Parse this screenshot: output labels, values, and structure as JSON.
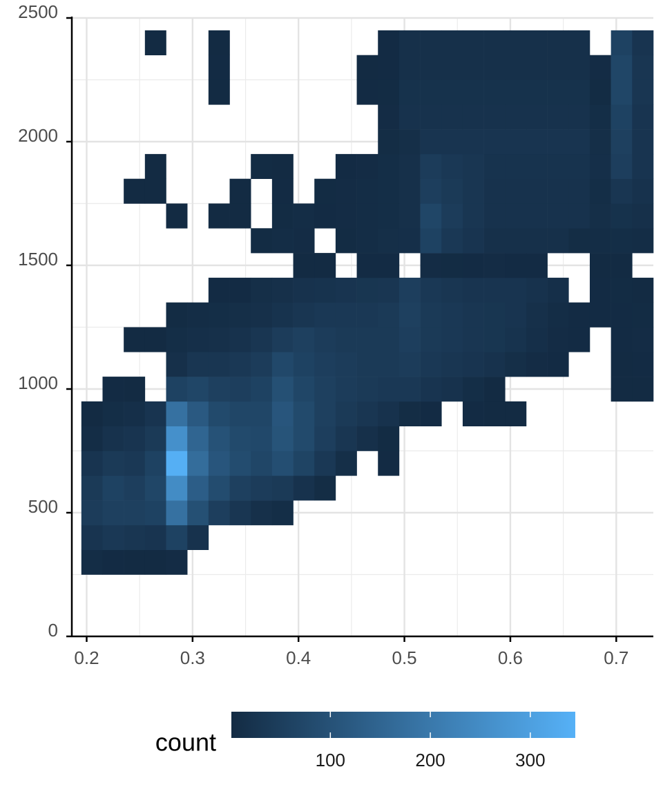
{
  "chart_data": {
    "type": "heatmap",
    "xlim": [
      0.186,
      0.735
    ],
    "ylim": [
      0,
      2500
    ],
    "xticks": [
      0.2,
      0.3,
      0.4,
      0.5,
      0.6,
      0.7
    ],
    "yticks": [
      0,
      500,
      1000,
      1500,
      2000,
      2500
    ],
    "grid": true,
    "minor_grid": true,
    "x_bins": [
      0.195,
      0.215,
      0.235,
      0.255,
      0.275,
      0.295,
      0.315,
      0.335,
      0.355,
      0.375,
      0.395,
      0.415,
      0.435,
      0.455,
      0.475,
      0.495,
      0.515,
      0.535,
      0.555,
      0.575,
      0.595,
      0.615,
      0.635,
      0.655,
      0.675,
      0.695,
      0.715,
      0.735
    ],
    "y_bins": [
      250,
      350,
      450,
      550,
      650,
      750,
      850,
      950,
      1050,
      1150,
      1250,
      1350,
      1450,
      1550,
      1650,
      1750,
      1850,
      1950,
      2050,
      2150,
      2250,
      2350,
      2450
    ],
    "counts": [
      [
        6,
        2,
        1,
        1,
        4,
        null,
        null,
        null,
        null,
        null,
        null,
        null,
        null,
        null,
        null,
        null,
        null,
        null,
        null,
        null,
        null,
        null,
        null,
        null,
        null,
        null,
        null
      ],
      [
        25,
        35,
        30,
        25,
        60,
        20,
        null,
        null,
        null,
        null,
        null,
        null,
        null,
        null,
        null,
        null,
        null,
        null,
        null,
        null,
        null,
        null,
        null,
        null,
        null,
        null,
        null
      ],
      [
        45,
        55,
        55,
        60,
        180,
        95,
        50,
        30,
        15,
        8,
        null,
        null,
        null,
        null,
        null,
        null,
        null,
        null,
        null,
        null,
        null,
        null,
        null,
        null,
        null,
        null,
        null
      ],
      [
        40,
        60,
        50,
        70,
        250,
        130,
        85,
        55,
        45,
        40,
        20,
        5,
        null,
        null,
        null,
        null,
        null,
        null,
        null,
        null,
        null,
        null,
        null,
        null,
        null,
        null,
        null
      ],
      [
        25,
        40,
        35,
        60,
        340,
        170,
        110,
        85,
        70,
        90,
        65,
        35,
        10,
        null,
        2,
        null,
        null,
        null,
        null,
        null,
        null,
        null,
        null,
        null,
        null,
        null,
        null
      ],
      [
        6,
        20,
        25,
        40,
        260,
        150,
        100,
        80,
        75,
        105,
        80,
        50,
        30,
        15,
        3,
        null,
        null,
        null,
        null,
        null,
        null,
        null,
        null,
        null,
        null,
        null,
        null
      ],
      [
        1,
        8,
        12,
        25,
        180,
        120,
        80,
        70,
        70,
        110,
        80,
        55,
        40,
        30,
        20,
        5,
        2,
        null,
        2,
        1,
        1,
        null,
        null,
        null,
        null,
        null,
        null
      ],
      [
        null,
        2,
        1,
        null,
        60,
        70,
        55,
        50,
        60,
        95,
        70,
        55,
        45,
        40,
        35,
        35,
        25,
        20,
        8,
        1,
        null,
        null,
        null,
        null,
        null,
        1,
        1
      ],
      [
        null,
        null,
        null,
        null,
        15,
        30,
        30,
        35,
        45,
        75,
        60,
        50,
        45,
        40,
        40,
        45,
        35,
        30,
        25,
        20,
        10,
        4,
        2,
        null,
        null,
        1,
        2
      ],
      [
        null,
        null,
        1,
        1,
        8,
        12,
        15,
        20,
        30,
        45,
        55,
        45,
        40,
        40,
        40,
        50,
        40,
        35,
        30,
        28,
        22,
        12,
        4,
        2,
        null,
        2,
        4
      ],
      [
        null,
        null,
        null,
        null,
        3,
        6,
        8,
        10,
        15,
        22,
        30,
        35,
        35,
        35,
        40,
        55,
        40,
        35,
        30,
        28,
        25,
        15,
        6,
        2,
        2,
        2,
        3
      ],
      [
        null,
        null,
        null,
        null,
        null,
        null,
        2,
        2,
        10,
        14,
        20,
        22,
        25,
        28,
        30,
        50,
        35,
        30,
        25,
        25,
        25,
        20,
        12,
        null,
        2,
        3,
        1
      ],
      [
        null,
        null,
        null,
        null,
        null,
        null,
        null,
        null,
        null,
        null,
        1,
        1,
        null,
        2,
        2,
        null,
        4,
        3,
        2,
        4,
        2,
        2,
        null,
        null,
        1,
        1,
        null
      ],
      [
        null,
        null,
        null,
        null,
        null,
        null,
        null,
        null,
        3,
        6,
        4,
        null,
        3,
        6,
        10,
        12,
        60,
        35,
        25,
        15,
        15,
        15,
        15,
        5,
        6,
        8,
        6
      ],
      [
        null,
        null,
        null,
        null,
        1,
        null,
        1,
        1,
        null,
        3,
        6,
        2,
        4,
        6,
        8,
        15,
        70,
        45,
        30,
        20,
        20,
        20,
        20,
        20,
        10,
        18,
        14
      ],
      [
        null,
        null,
        1,
        1,
        null,
        null,
        null,
        1,
        null,
        2,
        null,
        3,
        4,
        6,
        8,
        15,
        50,
        40,
        30,
        20,
        20,
        20,
        20,
        20,
        8,
        30,
        20
      ],
      [
        null,
        null,
        null,
        1,
        null,
        null,
        null,
        null,
        3,
        1,
        null,
        null,
        2,
        4,
        8,
        15,
        45,
        35,
        30,
        22,
        22,
        22,
        22,
        22,
        12,
        50,
        25
      ],
      [
        null,
        null,
        null,
        null,
        null,
        null,
        null,
        null,
        null,
        null,
        null,
        null,
        null,
        null,
        5,
        10,
        25,
        25,
        25,
        25,
        25,
        25,
        25,
        25,
        10,
        55,
        25
      ],
      [
        null,
        null,
        null,
        null,
        null,
        null,
        null,
        null,
        null,
        null,
        null,
        null,
        null,
        null,
        4,
        20,
        20,
        20,
        20,
        20,
        20,
        20,
        20,
        20,
        8,
        60,
        25
      ],
      [
        null,
        null,
        null,
        null,
        null,
        null,
        1,
        null,
        null,
        null,
        null,
        null,
        null,
        2,
        3,
        18,
        18,
        18,
        18,
        18,
        18,
        18,
        18,
        18,
        3,
        70,
        30
      ],
      [
        null,
        null,
        null,
        null,
        null,
        null,
        2,
        null,
        null,
        null,
        null,
        null,
        null,
        1,
        2,
        15,
        15,
        15,
        15,
        15,
        15,
        15,
        15,
        15,
        4,
        70,
        30
      ],
      [
        null,
        null,
        null,
        1,
        null,
        null,
        1,
        null,
        null,
        null,
        null,
        null,
        null,
        null,
        2,
        15,
        15,
        15,
        15,
        15,
        15,
        15,
        15,
        15,
        null,
        60,
        25
      ]
    ],
    "legend_title": "count",
    "clim": [
      1,
      345
    ],
    "colorbar_ticks": [
      100,
      200,
      300
    ],
    "color_low": "#132B43",
    "color_high": "#56B1F7"
  }
}
